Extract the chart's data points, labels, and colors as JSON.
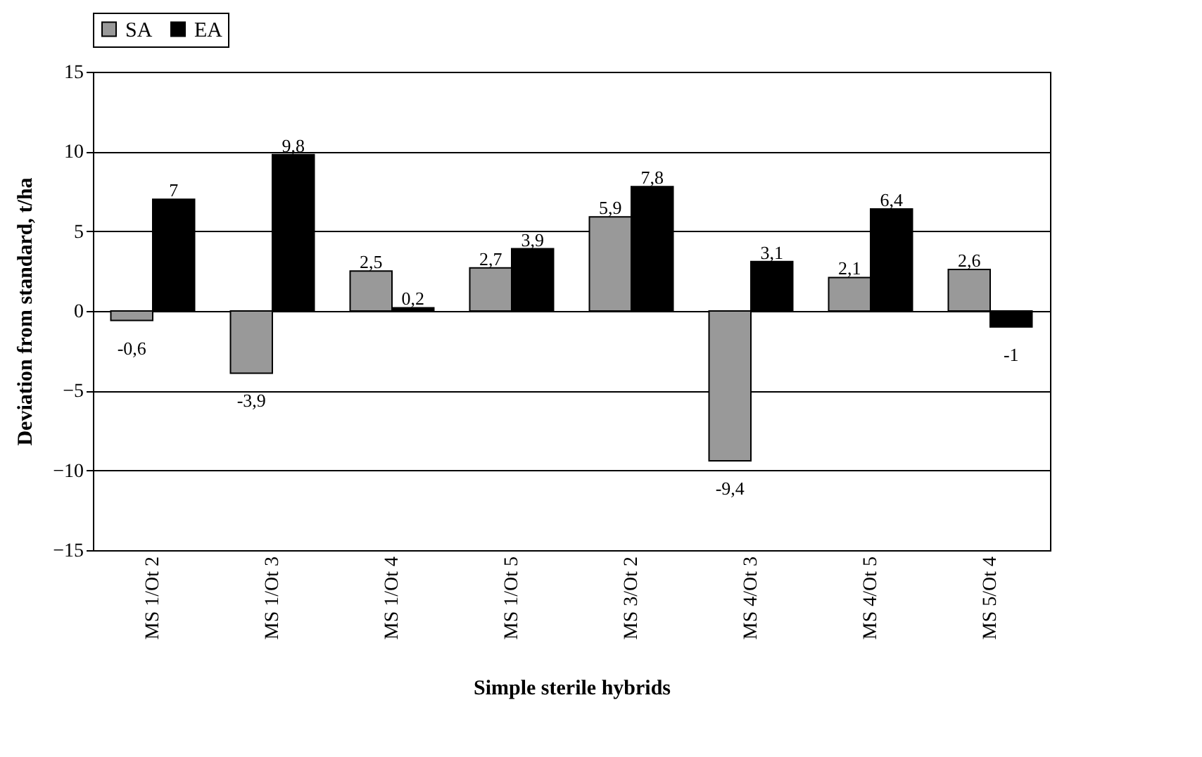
{
  "chart_data": {
    "type": "bar",
    "xlabel": "Simple sterile hybrids",
    "ylabel": "Deviation from standard, t/ha",
    "categories": [
      "MS 1/Ot 2",
      "MS 1/Ot 3",
      "MS 1/Ot 4",
      "MS 1/Ot 5",
      "MS 3/Ot 2",
      "MS 4/Ot 3",
      "MS 4/Ot 5",
      "MS 5/Ot 4"
    ],
    "series": [
      {
        "name": "SA",
        "color": "#999999",
        "values": [
          -0.6,
          -3.9,
          2.5,
          2.7,
          5.9,
          -9.4,
          2.1,
          2.6
        ],
        "value_labels": [
          "-0,6",
          "-3,9",
          "2,5",
          "2,7",
          "5,9",
          "-9,4",
          "2,1",
          "2,6"
        ]
      },
      {
        "name": "EA",
        "color": "#000000",
        "values": [
          7,
          9.8,
          0.2,
          3.9,
          7.8,
          3.1,
          6.4,
          -1
        ],
        "value_labels": [
          "7",
          "9,8",
          "0,2",
          "3,9",
          "7,8",
          "3,1",
          "6,4",
          "-1"
        ]
      }
    ],
    "ylim": [
      -15,
      15
    ],
    "yticks": [
      -15,
      -10,
      -5,
      0,
      5,
      10,
      15
    ],
    "grid": "y",
    "legend": "top"
  }
}
